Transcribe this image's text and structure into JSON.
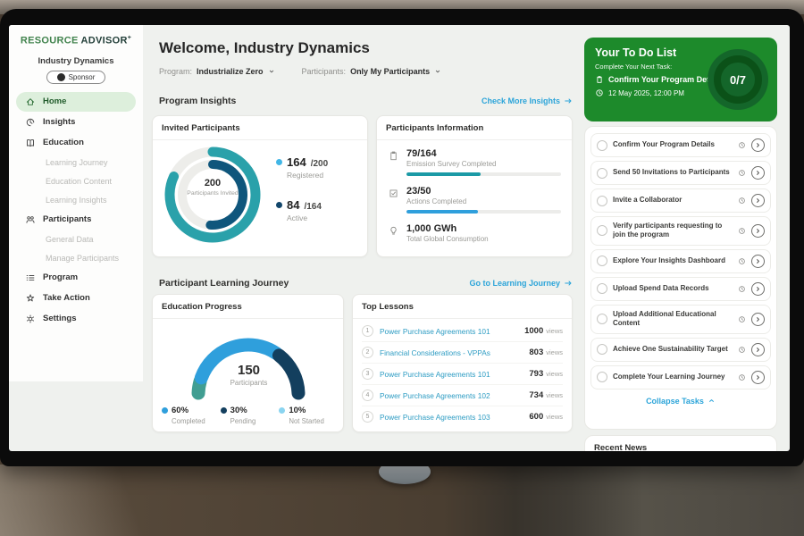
{
  "colors": {
    "brand_green": "#1d8a2b",
    "teal": "#2aa1aa",
    "dark_blue": "#0f567c",
    "blue": "#2f9fdc",
    "navy": "#133f5e",
    "light_blue": "#8ad4f0",
    "link": "#2ba4d9",
    "sidebar_active_bg": "#ddefdc"
  },
  "sidebar": {
    "logo_primary": "RESOURCE",
    "logo_secondary": "ADVISOR",
    "logo_plus": "+",
    "org_name": "Industry Dynamics",
    "org_badge": "Sponsor",
    "items": [
      {
        "label": "Home",
        "icon": "home-icon",
        "active": true,
        "sub": false
      },
      {
        "label": "Insights",
        "icon": "insights-icon",
        "active": false,
        "sub": false
      },
      {
        "label": "Education",
        "icon": "education-icon",
        "active": false,
        "sub": false
      },
      {
        "label": "Learning Journey",
        "icon": "",
        "active": false,
        "sub": true
      },
      {
        "label": "Education Content",
        "icon": "",
        "active": false,
        "sub": true
      },
      {
        "label": "Learning Insights",
        "icon": "",
        "active": false,
        "sub": true
      },
      {
        "label": "Participants",
        "icon": "participants-icon",
        "active": false,
        "sub": false
      },
      {
        "label": "General Data",
        "icon": "",
        "active": false,
        "sub": true
      },
      {
        "label": "Manage Participants",
        "icon": "",
        "active": false,
        "sub": true
      },
      {
        "label": "Program",
        "icon": "program-icon",
        "active": false,
        "sub": false
      },
      {
        "label": "Take Action",
        "icon": "take-action-icon",
        "active": false,
        "sub": false
      },
      {
        "label": "Settings",
        "icon": "settings-icon",
        "active": false,
        "sub": false
      }
    ]
  },
  "header": {
    "title": "Welcome, Industry Dynamics",
    "filters": [
      {
        "label": "Program:",
        "value": "Industrialize Zero"
      },
      {
        "label": "Participants:",
        "value": "Only My Participants"
      }
    ]
  },
  "program_insights": {
    "heading": "Program Insights",
    "link": "Check More Insights",
    "invited_card": {
      "title": "Invited Participants",
      "center_value": "200",
      "center_label": "Participants Invited",
      "legend": [
        {
          "value": "164",
          "total": "/200",
          "label": "Registered",
          "color": "#41b6e6"
        },
        {
          "value": "84",
          "total": "/164",
          "label": "Active",
          "color": "#12466b"
        }
      ]
    },
    "info_card": {
      "title": "Participants Information",
      "stats": [
        {
          "icon": "survey-icon",
          "value_text": "79/164",
          "label": "Emission Survey Completed",
          "bar_value": 79,
          "bar_total": 164,
          "bar_color": "#1b9aa6"
        },
        {
          "icon": "actions-icon",
          "value_text": "23/50",
          "label": "Actions Completed",
          "bar_value": 23,
          "bar_total": 50,
          "bar_color": "#2f9fdc"
        },
        {
          "icon": "bulb-icon",
          "value_text": "1,000 GWh",
          "label": "Total Global Consumption",
          "bar_value": null,
          "bar_total": null,
          "bar_color": ""
        }
      ]
    }
  },
  "learning_journey": {
    "heading": "Participant Learning Journey",
    "link": "Go to Learning Journey",
    "education_card": {
      "title": "Education Progress",
      "center_value": "150",
      "center_label": "Participants",
      "legend": [
        {
          "pct": "60%",
          "label": "Completed",
          "color": "#2f9fdc"
        },
        {
          "pct": "30%",
          "label": "Pending",
          "color": "#133f5e"
        },
        {
          "pct": "10%",
          "label": "Not Started",
          "color": "#8ad4f0"
        }
      ]
    },
    "top_lessons_card": {
      "title": "Top Lessons",
      "views_suffix": "views",
      "rows": [
        {
          "rank": "1",
          "title": "Power Purchase Agreements 101",
          "views": "1000"
        },
        {
          "rank": "2",
          "title": "Financial Considerations - VPPAs",
          "views": "803"
        },
        {
          "rank": "3",
          "title": "Power Purchase Agreements 101",
          "views": "793"
        },
        {
          "rank": "4",
          "title": "Power Purchase Agreements 102",
          "views": "734"
        },
        {
          "rank": "5",
          "title": "Power Purchase Agreements 103",
          "views": "600"
        }
      ]
    }
  },
  "todo": {
    "title": "Your To Do List",
    "subtitle": "Complete Your Next Task:",
    "next_task": "Confirm Your Program Details",
    "due": "12 May 2025, 12:00 PM",
    "progress": "0/7",
    "tasks": [
      "Confirm Your Program Details",
      "Send 50 Invitations to Participants",
      "Invite a Collaborator",
      "Verify participants requesting to join the program",
      "Explore Your Insights Dashboard",
      "Upload Spend Data Records",
      "Upload Additional Educational Content",
      "Achieve One Sustainability Target",
      "Complete Your Learning Journey"
    ],
    "collapse_label": "Collapse Tasks"
  },
  "recent_news": {
    "heading": "Recent News"
  },
  "chart_data": [
    {
      "type": "donut",
      "title": "Invited Participants",
      "center": {
        "value": 200,
        "label": "Participants Invited"
      },
      "rings": [
        {
          "name": "Registered",
          "value": 164,
          "total": 200,
          "color": "#2aa1aa"
        },
        {
          "name": "Active",
          "value": 84,
          "total": 164,
          "color": "#0f567c"
        }
      ]
    },
    {
      "type": "gauge",
      "title": "Education Progress",
      "center": {
        "value": 150,
        "label": "Participants"
      },
      "segments": [
        {
          "name": "Not Started",
          "pct": 10,
          "color": "#419e92"
        },
        {
          "name": "Completed",
          "pct": 60,
          "color": "#2f9fdc"
        },
        {
          "name": "Pending",
          "pct": 30,
          "color": "#133f5e"
        }
      ]
    },
    {
      "type": "bar",
      "title": "Participants Information",
      "bars": [
        {
          "label": "Emission Survey Completed",
          "value": 79,
          "total": 164,
          "color": "#1b9aa6"
        },
        {
          "label": "Actions Completed",
          "value": 23,
          "total": 50,
          "color": "#2f9fdc"
        }
      ],
      "kpi": {
        "value": "1,000 GWh",
        "label": "Total Global Consumption"
      }
    },
    {
      "type": "table",
      "title": "Top Lessons",
      "columns": [
        "rank",
        "lesson",
        "views"
      ],
      "rows": [
        [
          1,
          "Power Purchase Agreements 101",
          1000
        ],
        [
          2,
          "Financial Considerations - VPPAs",
          803
        ],
        [
          3,
          "Power Purchase Agreements 101",
          793
        ],
        [
          4,
          "Power Purchase Agreements 102",
          734
        ],
        [
          5,
          "Power Purchase Agreements 103",
          600
        ]
      ]
    }
  ]
}
